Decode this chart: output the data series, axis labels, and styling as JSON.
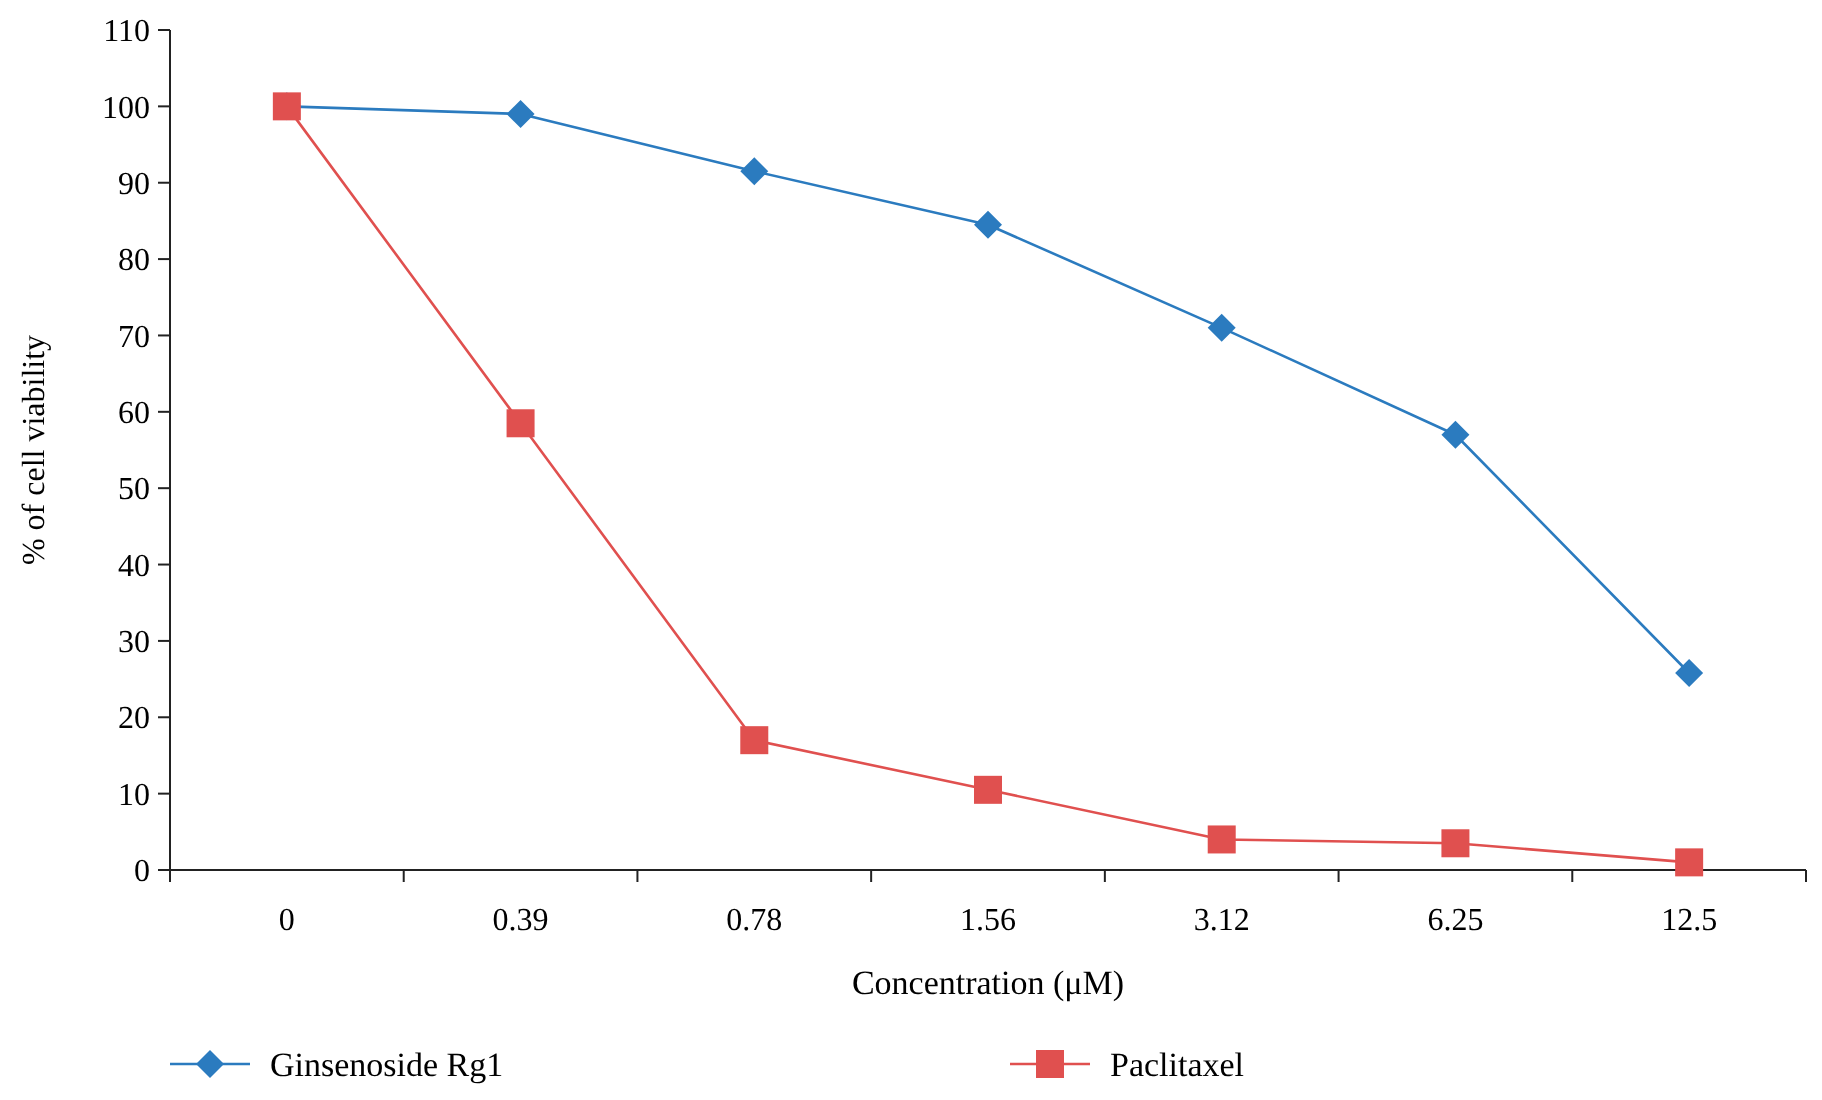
{
  "chart_data": {
    "type": "line",
    "xlabel": "Concentration (μM)",
    "ylabel": "% of cell viability",
    "categories": [
      "0",
      "0.39",
      "0.78",
      "1.56",
      "3.12",
      "6.25",
      "12.5"
    ],
    "ylim": [
      0,
      110
    ],
    "yticks": [
      0,
      10,
      20,
      30,
      40,
      50,
      60,
      70,
      80,
      90,
      100,
      110
    ],
    "grid": false,
    "legend": "bottom",
    "line_style": "solid",
    "series": [
      {
        "name": "Ginsenoside Rg1",
        "color": "#2b7bbf",
        "marker": "diamond",
        "values": [
          100,
          99,
          91.5,
          84.5,
          71,
          57,
          25.8
        ]
      },
      {
        "name": "Paclitaxel",
        "color": "#e0504f",
        "marker": "square",
        "values": [
          100,
          58.5,
          17,
          10.5,
          4,
          3.5,
          1
        ]
      }
    ]
  }
}
